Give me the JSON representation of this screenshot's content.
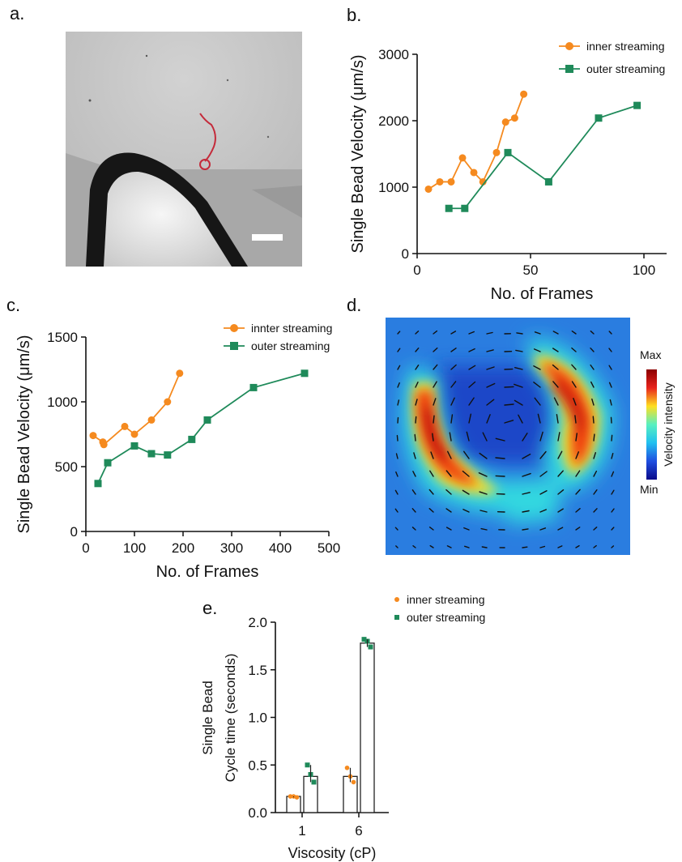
{
  "panels": {
    "a": {
      "label": "a."
    },
    "b": {
      "label": "b."
    },
    "c": {
      "label": "c."
    },
    "d": {
      "label": "d."
    },
    "e": {
      "label": "e."
    }
  },
  "colorbar": {
    "max_label": "Max",
    "min_label": "Min",
    "title": "Velocity intensity"
  },
  "colors": {
    "inner": "#F58A1F",
    "outer": "#1F8A5A",
    "trace": "#C42A3A"
  },
  "chart_data": [
    {
      "id": "b",
      "type": "line",
      "xlabel": "No. of Frames",
      "ylabel": "Single Bead Velocity (μm/s)",
      "xlim": [
        0,
        110
      ],
      "ylim": [
        0,
        3000
      ],
      "xticks": [
        0,
        50,
        100
      ],
      "yticks": [
        0,
        1000,
        2000,
        3000
      ],
      "legend_position": "top-right",
      "series": [
        {
          "name": "inner streaming",
          "marker": "circle",
          "color": "#F58A1F",
          "x": [
            5,
            10,
            15,
            20,
            25,
            29,
            35,
            39,
            43,
            47
          ],
          "y": [
            970,
            1080,
            1080,
            1440,
            1220,
            1080,
            1520,
            1980,
            2040,
            2400
          ]
        },
        {
          "name": "outer streaming",
          "marker": "square",
          "color": "#1F8A5A",
          "x": [
            14,
            21,
            40,
            58,
            80,
            97
          ],
          "y": [
            680,
            680,
            1520,
            1080,
            2040,
            2230
          ]
        }
      ]
    },
    {
      "id": "c",
      "type": "line",
      "xlabel": "No. of Frames",
      "ylabel": "Single Bead Velocity (μm/s)",
      "xlim": [
        0,
        500
      ],
      "ylim": [
        0,
        1500
      ],
      "xticks": [
        0,
        100,
        200,
        300,
        400,
        500
      ],
      "yticks": [
        0,
        500,
        1000,
        1500
      ],
      "legend_position": "top-right",
      "series": [
        {
          "name": "innter streaming",
          "marker": "circle",
          "color": "#F58A1F",
          "x": [
            15,
            35,
            37,
            80,
            100,
            135,
            168,
            193
          ],
          "y": [
            740,
            690,
            670,
            810,
            750,
            860,
            1000,
            1220
          ]
        },
        {
          "name": "outer streaming",
          "marker": "square",
          "color": "#1F8A5A",
          "x": [
            25,
            45,
            100,
            135,
            168,
            218,
            250,
            345,
            450
          ],
          "y": [
            370,
            530,
            660,
            600,
            590,
            710,
            860,
            1110,
            1220
          ]
        }
      ]
    },
    {
      "id": "e",
      "type": "bar",
      "xlabel": "Viscosity (cP)",
      "ylabel": [
        "Single Bead",
        "Cycle time (seconds)"
      ],
      "ylim": [
        0,
        2.0
      ],
      "yticks": [
        "0.0",
        "0.5",
        "1.0",
        "1.5",
        "2.0"
      ],
      "categories": [
        "1",
        "6"
      ],
      "legend_position": "top-right",
      "series": [
        {
          "name": "inner streaming",
          "color": "#F58A1F",
          "values": [
            0.17,
            0.38
          ],
          "points": [
            [
              0.17,
              0.17,
              0.16
            ],
            [
              0.47,
              0.38,
              0.32
            ]
          ]
        },
        {
          "name": "outer streaming",
          "color": "#1F8A5A",
          "values": [
            0.38,
            1.78
          ],
          "points": [
            [
              0.5,
              0.4,
              0.32
            ],
            [
              1.82,
              1.8,
              1.74
            ]
          ]
        }
      ]
    }
  ]
}
